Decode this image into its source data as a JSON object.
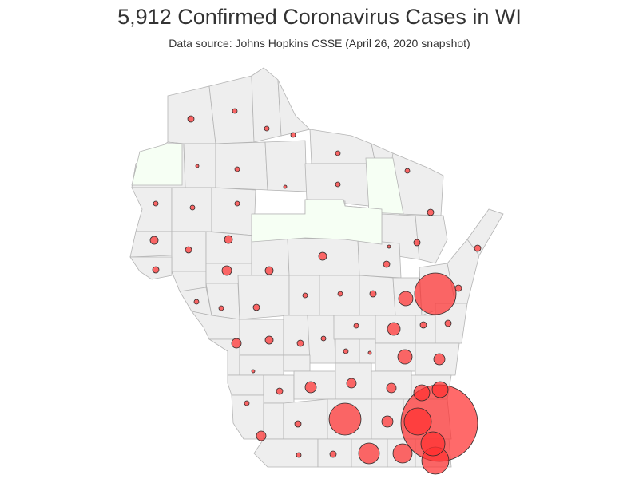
{
  "title": "5,912 Confirmed Coronavirus Cases in WI",
  "subtitle": "Data source: Johns Hopkins CSSE (April 26, 2020 snapshot)",
  "colors": {
    "county_fill": "#eeeeee",
    "county_no_cases_fill": "#f6fff4",
    "county_border": "#b4b4b4",
    "bubble_fill": "#ff3030",
    "bubble_stroke": "#2b2b2b"
  },
  "legend": "none"
}
